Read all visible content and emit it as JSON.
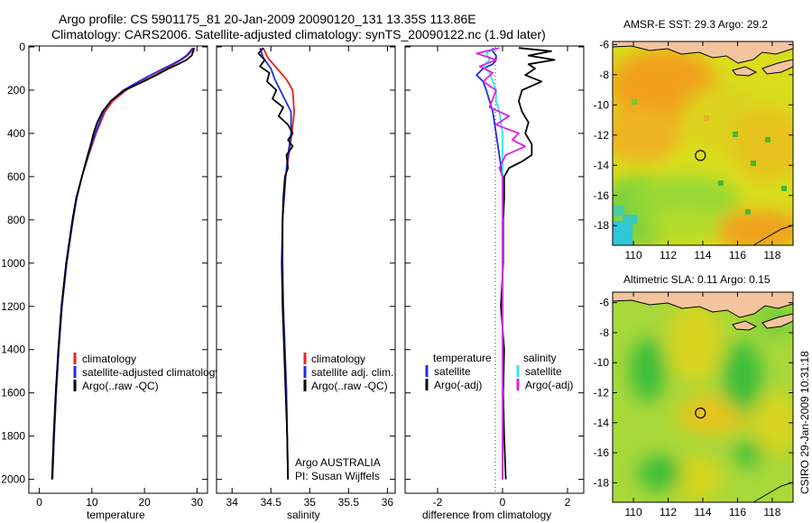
{
  "figure": {
    "title_line1": "Argo profile: CS 5901175_81 20-Jan-2009 20090120_131 13.35S 113.86E",
    "title_line2": "Climatology: CARS2006. Satellite-adjusted climatology: synTS_20090122.nc (1.9d later)",
    "side_text": "CSIRO 29-Jan-2009 10:31:18",
    "credit_line1": "Argo AUSTRALIA",
    "credit_line2": "PI: Susan Wijffels"
  },
  "colors": {
    "red": "#e8251c",
    "blue": "#1c2ee0",
    "black": "#000000",
    "cyan": "#2ee8e8",
    "magenta": "#e020e0"
  },
  "chart_data": [
    {
      "type": "line",
      "name": "temperature",
      "xlabel": "temperature",
      "xlim": [
        -2,
        32
      ],
      "xticks": [
        0,
        10,
        20,
        30
      ],
      "ylim": [
        0,
        2060
      ],
      "yticks": [
        0,
        200,
        400,
        600,
        800,
        1000,
        1200,
        1400,
        1600,
        1800,
        2000
      ],
      "reversed_y": true,
      "legend": [
        "climatology",
        "satellite-adjusted climatology",
        "Argo(..raw -QC)"
      ],
      "series": [
        {
          "name": "climatology",
          "color": "red",
          "depth": [
            5,
            20,
            40,
            60,
            80,
            100,
            130,
            160,
            200,
            250,
            300,
            400,
            500,
            600,
            700,
            800,
            1000,
            1200,
            1400,
            1600,
            1800,
            2000
          ],
          "values": [
            29.5,
            29.0,
            28.2,
            27.0,
            25.6,
            24.2,
            22.0,
            19.5,
            16.5,
            14.0,
            12.5,
            10.8,
            9.4,
            8.1,
            7.1,
            6.4,
            5.2,
            4.3,
            3.7,
            3.2,
            2.8,
            2.5
          ]
        },
        {
          "name": "satellite",
          "color": "blue",
          "depth": [
            5,
            20,
            40,
            60,
            80,
            100,
            130,
            160,
            200,
            250,
            300,
            400,
            500,
            600,
            700,
            800,
            1000,
            1200,
            1400,
            1600,
            1800,
            2000
          ],
          "values": [
            29.2,
            28.7,
            28.0,
            26.8,
            25.3,
            23.6,
            21.2,
            18.9,
            16.0,
            13.6,
            12.2,
            10.6,
            9.3,
            8.1,
            7.1,
            6.4,
            5.2,
            4.3,
            3.7,
            3.2,
            2.8,
            2.5
          ]
        },
        {
          "name": "argo",
          "color": "black",
          "depth": [
            5,
            20,
            40,
            60,
            80,
            100,
            130,
            160,
            200,
            250,
            300,
            350,
            400,
            450,
            500,
            600,
            700,
            800,
            1000,
            1200,
            1400,
            1600,
            1800,
            2000
          ],
          "values": [
            29.4,
            29.3,
            29.0,
            28.0,
            26.4,
            24.6,
            22.3,
            19.8,
            16.2,
            13.6,
            12.0,
            11.0,
            10.3,
            9.8,
            9.2,
            8.1,
            7.0,
            6.3,
            5.1,
            4.2,
            3.6,
            3.1,
            2.7,
            2.4
          ]
        }
      ]
    },
    {
      "type": "line",
      "name": "salinity",
      "xlabel": "salinity",
      "xlim": [
        33.8,
        36.1
      ],
      "xticks": [
        34,
        34.5,
        35,
        35.5,
        36
      ],
      "ylim": [
        0,
        2060
      ],
      "reversed_y": true,
      "legend": [
        "climatology",
        "satellite adj. clim.",
        "Argo(..raw -QC)"
      ],
      "series": [
        {
          "name": "climatology",
          "color": "red",
          "depth": [
            5,
            50,
            100,
            150,
            200,
            300,
            400,
            500,
            600,
            800,
            1000,
            1200,
            1400,
            1600,
            1800,
            2000
          ],
          "values": [
            34.4,
            34.46,
            34.58,
            34.7,
            34.78,
            34.8,
            34.77,
            34.73,
            34.69,
            34.65,
            34.65,
            34.66,
            34.68,
            34.7,
            34.71,
            34.72
          ]
        },
        {
          "name": "satellite",
          "color": "blue",
          "depth": [
            5,
            50,
            100,
            150,
            200,
            300,
            400,
            500,
            600,
            800,
            1000,
            1200,
            1400,
            1600,
            1800,
            2000
          ],
          "values": [
            34.36,
            34.4,
            34.5,
            34.55,
            34.62,
            34.76,
            34.76,
            34.72,
            34.69,
            34.65,
            34.65,
            34.66,
            34.68,
            34.7,
            34.71,
            34.72
          ]
        },
        {
          "name": "argo",
          "color": "black",
          "depth": [
            5,
            30,
            60,
            90,
            120,
            160,
            200,
            240,
            280,
            320,
            360,
            400,
            430,
            460,
            500,
            560,
            600,
            700,
            800,
            1000,
            1200,
            1400,
            1600,
            1800,
            2000
          ],
          "values": [
            34.4,
            34.34,
            34.42,
            34.36,
            34.48,
            34.45,
            34.57,
            34.52,
            34.66,
            34.6,
            34.72,
            34.78,
            34.72,
            34.78,
            34.7,
            34.72,
            34.68,
            34.66,
            34.65,
            34.64,
            34.65,
            34.67,
            34.69,
            34.71,
            34.72
          ]
        }
      ]
    },
    {
      "type": "line",
      "name": "difference",
      "xlabel": "difference from climatology",
      "xlim": [
        -3,
        2.5
      ],
      "xticks": [
        -2,
        0,
        2
      ],
      "ylim": [
        0,
        2060
      ],
      "reversed_y": true,
      "legend_temperature_header": "temperature",
      "legend_salinity_header": "salinity",
      "legend_temperature": [
        "satellite",
        "Argo(-adj)"
      ],
      "legend_salinity": [
        "satellite",
        "Argo(-adj)"
      ],
      "series": [
        {
          "name": "temp-satellite",
          "color": "blue",
          "depth": [
            5,
            20,
            40,
            60,
            80,
            100,
            130,
            160,
            200,
            250,
            300,
            400,
            500,
            600,
            800,
            1000,
            1500,
            2000
          ],
          "values": [
            -0.3,
            -0.3,
            -0.2,
            -0.2,
            -0.3,
            -0.6,
            -0.8,
            -0.6,
            -0.5,
            -0.4,
            -0.3,
            -0.2,
            -0.1,
            0,
            0,
            0,
            0,
            0
          ]
        },
        {
          "name": "temp-argo",
          "color": "black",
          "depth": [
            5,
            20,
            40,
            60,
            80,
            100,
            130,
            160,
            200,
            250,
            300,
            350,
            400,
            450,
            500,
            530,
            560,
            600,
            700,
            800,
            1000,
            1200,
            1400,
            1600,
            1800,
            2000
          ],
          "values": [
            0.5,
            1.5,
            0.8,
            1.6,
            0.8,
            1.0,
            0.7,
            1.2,
            0.6,
            0.5,
            0.6,
            0.8,
            0.7,
            0.9,
            0.9,
            0.6,
            0.2,
            0.05,
            0.05,
            0.02,
            0.02,
            -0.05,
            0.05,
            0.02,
            0.05,
            0.1
          ]
        },
        {
          "name": "sal-satellite",
          "color": "cyan",
          "depth": [
            5,
            30,
            60,
            90,
            120,
            160,
            200,
            250,
            300,
            400,
            500,
            600,
            800,
            1000,
            1500,
            2000
          ],
          "values": [
            -0.2,
            -0.5,
            -0.4,
            -0.6,
            -0.4,
            -0.3,
            -0.2,
            -0.2,
            -0.1,
            0,
            0,
            0,
            0,
            0,
            0,
            0
          ]
        },
        {
          "name": "sal-argo",
          "color": "magenta",
          "depth": [
            5,
            30,
            60,
            90,
            120,
            160,
            200,
            240,
            280,
            320,
            360,
            400,
            430,
            460,
            500,
            560,
            600,
            700,
            800,
            1000,
            1500,
            2000
          ],
          "values": [
            -0.1,
            -0.8,
            -0.2,
            -0.7,
            -0.3,
            -0.6,
            -0.2,
            -0.3,
            -0.4,
            0.2,
            -0.2,
            0.5,
            0.3,
            0.7,
            0.1,
            -0.1,
            0.0,
            0.0,
            0.0,
            0.0,
            0.0,
            0.0
          ]
        }
      ]
    },
    {
      "type": "heatmap",
      "name": "sst-map",
      "title": "AMSR-E SST: 29.3 Argo: 29.2",
      "xlim": [
        108.8,
        119.2
      ],
      "ylim": [
        -19.3,
        -5.8
      ],
      "xticks": [
        110,
        112,
        114,
        116,
        118
      ],
      "yticks": [
        -6,
        -8,
        -10,
        -12,
        -14,
        -16,
        -18
      ],
      "marker": {
        "lon": 113.86,
        "lat": -13.35
      }
    },
    {
      "type": "heatmap",
      "name": "sla-map",
      "title": "Altimetric SLA: 0.11 Argo: 0.15",
      "xlim": [
        108.8,
        119.2
      ],
      "ylim": [
        -19.3,
        -5.3
      ],
      "xticks": [
        110,
        112,
        114,
        116,
        118
      ],
      "yticks": [
        -6,
        -8,
        -10,
        -12,
        -14,
        -16,
        -18
      ],
      "marker": {
        "lon": 113.86,
        "lat": -13.35
      }
    }
  ]
}
